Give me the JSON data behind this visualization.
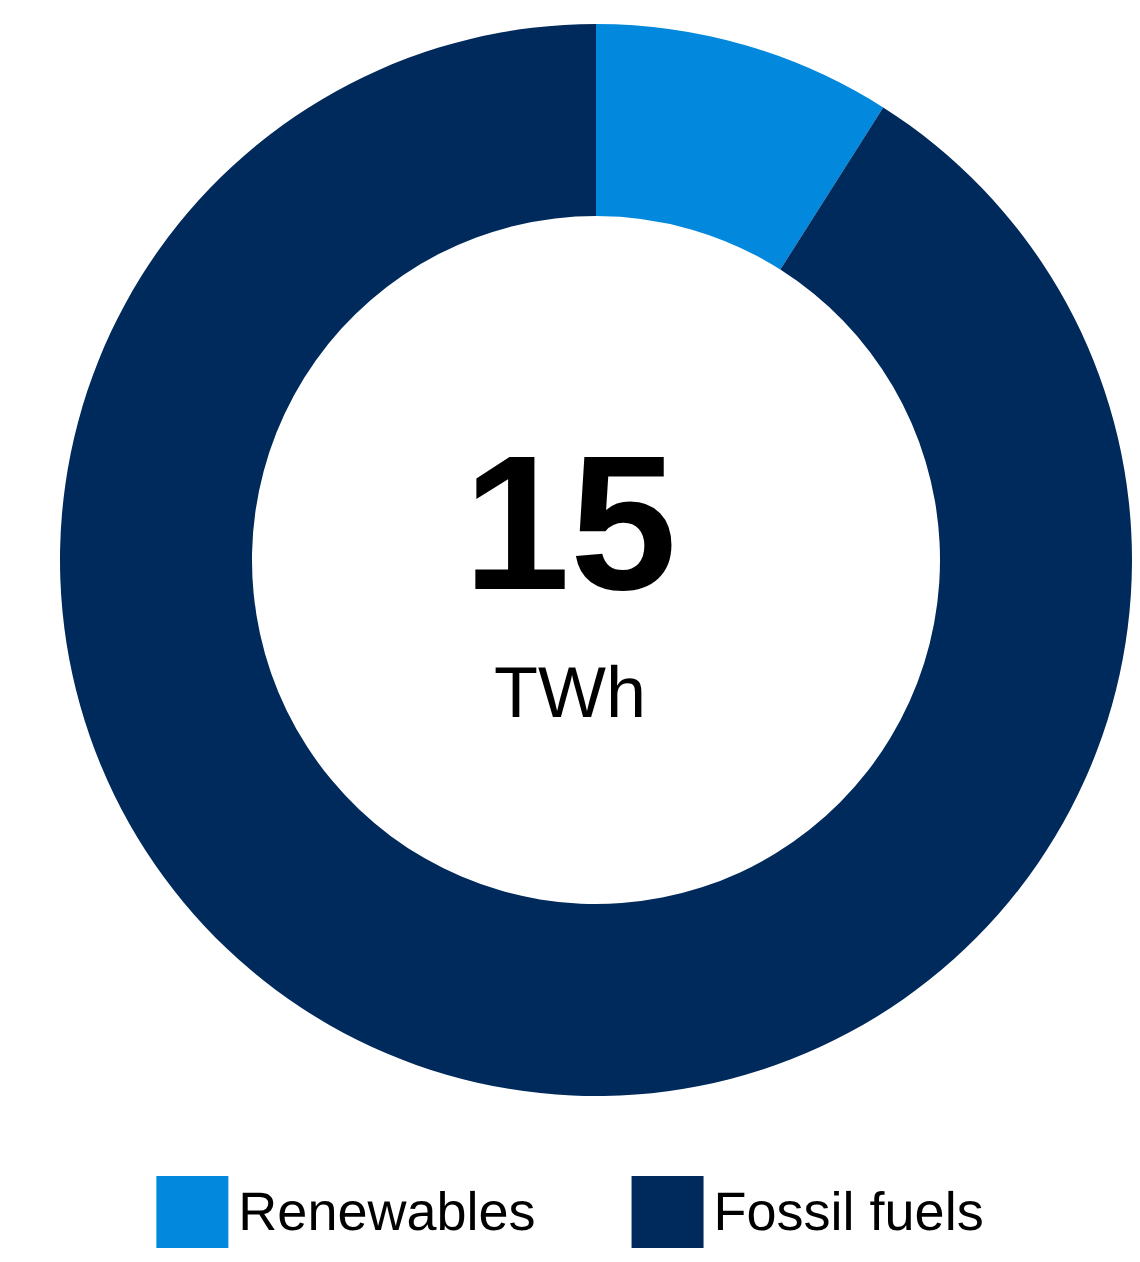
{
  "chart_data": {
    "type": "donut",
    "categories": [
      "Renewables",
      "Fossil fuels"
    ],
    "values": [
      9,
      91
    ],
    "colors": [
      "#0288dc",
      "#002a5c"
    ],
    "annotations": [
      "15",
      "TWh"
    ],
    "legend": "bottom"
  }
}
